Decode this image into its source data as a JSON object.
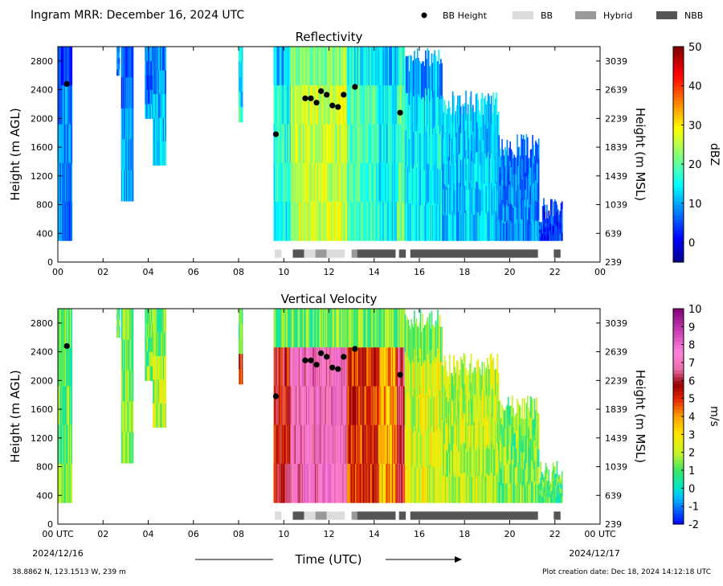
{
  "header": {
    "title": "Ingram MRR:  December 16, 2024 UTC",
    "legend": [
      {
        "label": "BB Height",
        "kind": "dot",
        "color": "#000000"
      },
      {
        "label": "BB",
        "kind": "swatch",
        "color": "#dcdcdc"
      },
      {
        "label": "Hybrid",
        "kind": "swatch",
        "color": "#999999"
      },
      {
        "label": "NBB",
        "kind": "swatch",
        "color": "#555555"
      }
    ]
  },
  "footer": {
    "location": "38.8862 N, 123.1513 W, 239 m",
    "creation": "Plot creation date: Dec 18, 2024 14:12:18 UTC",
    "xlabel": "Time (UTC)",
    "start_date": "2024/12/16",
    "end_date": "2024/12/17"
  },
  "chart_data": [
    {
      "type": "heatmap",
      "title": "Reflectivity",
      "ylabel": "Height (m AGL)",
      "ylabel_right": "Height (m MSL)",
      "xlim": [
        0,
        24
      ],
      "ylim": [
        0,
        3000
      ],
      "x_ticks": [
        "00",
        "02",
        "04",
        "06",
        "08",
        "10",
        "12",
        "14",
        "16",
        "18",
        "20",
        "22",
        "00"
      ],
      "y_ticks": [
        "0",
        "400",
        "800",
        "1200",
        "1600",
        "2000",
        "2400",
        "2800"
      ],
      "y_ticks_right": [
        "239",
        "639",
        "1039",
        "1439",
        "1839",
        "2239",
        "2639",
        "3039"
      ],
      "colorbar": {
        "label": "dBZ",
        "min": -5,
        "max": 50,
        "ticks": [
          "0",
          "10",
          "20",
          "30",
          "40",
          "50"
        ],
        "colormap": "jet"
      },
      "bb_height_points": [
        {
          "x": 0.4,
          "y": 2480
        },
        {
          "x": 9.65,
          "y": 1780
        },
        {
          "x": 10.95,
          "y": 2280
        },
        {
          "x": 11.2,
          "y": 2280
        },
        {
          "x": 11.45,
          "y": 2220
        },
        {
          "x": 11.65,
          "y": 2380
        },
        {
          "x": 11.9,
          "y": 2330
        },
        {
          "x": 12.15,
          "y": 2180
        },
        {
          "x": 12.4,
          "y": 2160
        },
        {
          "x": 12.65,
          "y": 2330
        },
        {
          "x": 13.15,
          "y": 2440
        },
        {
          "x": 15.15,
          "y": 2080
        }
      ],
      "bb_type_segments": [
        {
          "start": 9.6,
          "end": 9.9,
          "type": "BB"
        },
        {
          "start": 10.4,
          "end": 10.9,
          "type": "NBB"
        },
        {
          "start": 10.9,
          "end": 11.4,
          "type": "BB"
        },
        {
          "start": 11.4,
          "end": 11.9,
          "type": "Hybrid"
        },
        {
          "start": 11.9,
          "end": 12.7,
          "type": "BB"
        },
        {
          "start": 13.0,
          "end": 13.25,
          "type": "Hybrid"
        },
        {
          "start": 13.25,
          "end": 14.95,
          "type": "NBB"
        },
        {
          "start": 15.1,
          "end": 15.4,
          "type": "NBB"
        },
        {
          "start": 15.6,
          "end": 21.25,
          "type": "NBB"
        },
        {
          "start": 21.95,
          "end": 22.25,
          "type": "NBB"
        }
      ]
    },
    {
      "type": "heatmap",
      "title": "Vertical Velocity",
      "ylabel": "Height (m AGL)",
      "ylabel_right": "Height (m MSL)",
      "xlim": [
        0,
        24
      ],
      "ylim": [
        0,
        3000
      ],
      "x_ticks": [
        "00 UTC",
        "02",
        "04",
        "06",
        "08",
        "10",
        "12",
        "14",
        "16",
        "18",
        "20",
        "22",
        "00 UTC"
      ],
      "y_ticks": [
        "0",
        "400",
        "800",
        "1200",
        "1600",
        "2000",
        "2400",
        "2800"
      ],
      "y_ticks_right": [
        "239",
        "639",
        "1039",
        "1439",
        "1839",
        "2239",
        "2639",
        "3039"
      ],
      "colorbar": {
        "label": "m/s",
        "min": -2,
        "max": 10,
        "ticks": [
          "-2",
          "-1",
          "0",
          "1",
          "2",
          "3",
          "4",
          "5",
          "6",
          "7",
          "8",
          "9",
          "10"
        ],
        "colormap": "velocity"
      },
      "bb_height_points": [
        {
          "x": 0.4,
          "y": 2480
        },
        {
          "x": 9.65,
          "y": 1780
        },
        {
          "x": 10.95,
          "y": 2280
        },
        {
          "x": 11.2,
          "y": 2280
        },
        {
          "x": 11.45,
          "y": 2220
        },
        {
          "x": 11.65,
          "y": 2380
        },
        {
          "x": 11.9,
          "y": 2330
        },
        {
          "x": 12.15,
          "y": 2180
        },
        {
          "x": 12.4,
          "y": 2160
        },
        {
          "x": 12.65,
          "y": 2330
        },
        {
          "x": 13.15,
          "y": 2440
        },
        {
          "x": 15.15,
          "y": 2080
        }
      ],
      "bb_type_segments": [
        {
          "start": 9.6,
          "end": 9.9,
          "type": "BB"
        },
        {
          "start": 10.4,
          "end": 10.9,
          "type": "NBB"
        },
        {
          "start": 10.9,
          "end": 11.4,
          "type": "BB"
        },
        {
          "start": 11.4,
          "end": 11.9,
          "type": "Hybrid"
        },
        {
          "start": 11.9,
          "end": 12.7,
          "type": "BB"
        },
        {
          "start": 13.0,
          "end": 13.25,
          "type": "Hybrid"
        },
        {
          "start": 13.25,
          "end": 14.95,
          "type": "NBB"
        },
        {
          "start": 15.1,
          "end": 15.4,
          "type": "NBB"
        },
        {
          "start": 15.6,
          "end": 21.25,
          "type": "NBB"
        },
        {
          "start": 21.95,
          "end": 22.25,
          "type": "NBB"
        }
      ]
    }
  ],
  "echo_periods": [
    {
      "start": 0.0,
      "end": 0.6,
      "top": 3000,
      "bottom": 300,
      "z": 8,
      "w": 1.2
    },
    {
      "start": 2.6,
      "end": 2.7,
      "top": 3000,
      "bottom": 2600,
      "z": 12,
      "w": 1.0
    },
    {
      "start": 2.8,
      "end": 3.3,
      "top": 3000,
      "bottom": 850,
      "z": 10,
      "w": 1.5
    },
    {
      "start": 3.85,
      "end": 4.2,
      "top": 3000,
      "bottom": 2000,
      "z": 11,
      "w": 1.8
    },
    {
      "start": 4.2,
      "end": 4.75,
      "top": 3000,
      "bottom": 1350,
      "z": 12,
      "w": 2.0
    },
    {
      "start": 8.0,
      "end": 8.15,
      "top": 3000,
      "bottom": 1950,
      "z": 18,
      "w": 5.0
    },
    {
      "start": 9.55,
      "end": 10.3,
      "top": 3000,
      "bottom": 300,
      "z": 16,
      "w": 5.5
    },
    {
      "start": 10.3,
      "end": 12.8,
      "top": 3000,
      "bottom": 300,
      "z": 26,
      "w": 7.2
    },
    {
      "start": 12.8,
      "end": 14.2,
      "top": 3000,
      "bottom": 300,
      "z": 19,
      "w": 5.0
    },
    {
      "start": 14.2,
      "end": 15.0,
      "top": 3000,
      "bottom": 300,
      "z": 15,
      "w": 3.8
    },
    {
      "start": 15.0,
      "end": 15.35,
      "top": 3000,
      "bottom": 300,
      "z": 20,
      "w": 6.0
    },
    {
      "start": 15.35,
      "end": 17.0,
      "top": 2750,
      "bottom": 300,
      "z": 14,
      "w": 2.4
    },
    {
      "start": 17.0,
      "end": 19.5,
      "top": 2150,
      "bottom": 300,
      "z": 12,
      "w": 2.0
    },
    {
      "start": 19.5,
      "end": 21.3,
      "top": 1550,
      "bottom": 300,
      "z": 8,
      "w": 1.4
    },
    {
      "start": 21.3,
      "end": 22.3,
      "top": 650,
      "bottom": 300,
      "z": 4,
      "w": 1.0
    }
  ]
}
